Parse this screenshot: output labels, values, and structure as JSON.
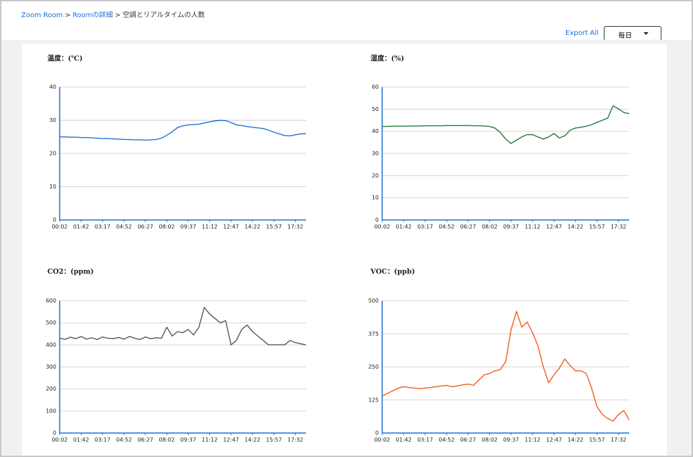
{
  "breadcrumb": {
    "items": [
      "Zoom Room",
      "Roomの詳細",
      "空調とリアルタイムの人数"
    ],
    "separator": ">"
  },
  "toolbar": {
    "export": "Export All",
    "period": "毎日"
  },
  "chart_data": [
    {
      "type": "line",
      "title": "温度：(℃)",
      "color": "#1a6fd6",
      "categories": [
        "00:02",
        null,
        null,
        null,
        "01:42",
        null,
        null,
        null,
        "03:17",
        null,
        null,
        null,
        "04:52",
        null,
        null,
        null,
        "06:27",
        null,
        null,
        null,
        "08:02",
        null,
        null,
        null,
        "09:37",
        null,
        null,
        null,
        "11:12",
        null,
        null,
        null,
        "12:47",
        null,
        null,
        null,
        "14:22",
        null,
        null,
        null,
        "15:57",
        null,
        null,
        null,
        "17:32",
        null,
        null
      ],
      "values": [
        25,
        25,
        24.9,
        24.9,
        24.8,
        24.8,
        24.7,
        24.6,
        24.5,
        24.5,
        24.4,
        24.3,
        24.2,
        24.2,
        24.1,
        24.1,
        24.0,
        24.1,
        24.2,
        24.6,
        25.5,
        26.5,
        27.8,
        28.3,
        28.6,
        28.7,
        28.8,
        29.2,
        29.5,
        29.8,
        30.0,
        29.9,
        29.3,
        28.6,
        28.4,
        28.1,
        27.9,
        27.7,
        27.5,
        27.0,
        26.4,
        25.9,
        25.4,
        25.3,
        25.6,
        25.9,
        26.0
      ],
      "ylim": [
        0,
        40
      ],
      "yticks": [
        0,
        10,
        20,
        30,
        40
      ],
      "grid": true
    },
    {
      "type": "line",
      "title": "湿度：(%)",
      "color": "#1e7a3c",
      "categories": [
        "00:02",
        null,
        null,
        null,
        "01:42",
        null,
        null,
        null,
        "03:17",
        null,
        null,
        null,
        "04:52",
        null,
        null,
        null,
        "06:27",
        null,
        null,
        null,
        "08:02",
        null,
        null,
        null,
        "09:37",
        null,
        null,
        null,
        "11:12",
        null,
        null,
        null,
        "12:47",
        null,
        null,
        null,
        "14:22",
        null,
        null,
        null,
        "15:57",
        null,
        null,
        null,
        "17:32",
        null,
        null
      ],
      "values": [
        42.2,
        42.2,
        42.3,
        42.3,
        42.3,
        42.4,
        42.4,
        42.4,
        42.5,
        42.5,
        42.5,
        42.5,
        42.6,
        42.6,
        42.6,
        42.6,
        42.6,
        42.5,
        42.5,
        42.4,
        42.2,
        41.5,
        39.5,
        36.5,
        34.5,
        36,
        37.5,
        38.5,
        38.5,
        37.5,
        36.5,
        37.5,
        39,
        37,
        38,
        40.5,
        41.5,
        41.8,
        42.3,
        43,
        44,
        45,
        46,
        51.5,
        50.2,
        48.5,
        48
      ],
      "ylim": [
        0,
        60
      ],
      "yticks": [
        0,
        10,
        20,
        30,
        40,
        50,
        60
      ],
      "grid": true
    },
    {
      "type": "line",
      "title": "CO2：(ppm)",
      "color": "#555555",
      "categories": [
        "00:02",
        null,
        null,
        null,
        "01:42",
        null,
        null,
        null,
        "03:17",
        null,
        null,
        null,
        "04:52",
        null,
        null,
        null,
        "06:27",
        null,
        null,
        null,
        "08:02",
        null,
        null,
        null,
        "09:37",
        null,
        null,
        null,
        "11:12",
        null,
        null,
        null,
        "12:47",
        null,
        null,
        null,
        "14:22",
        null,
        null,
        null,
        "15:57",
        null,
        null,
        null,
        "17:32",
        null,
        null
      ],
      "values": [
        430,
        425,
        435,
        428,
        438,
        426,
        432,
        424,
        436,
        430,
        428,
        434,
        426,
        438,
        430,
        424,
        436,
        428,
        432,
        430,
        480,
        440,
        460,
        455,
        470,
        445,
        480,
        570,
        540,
        520,
        500,
        510,
        400,
        420,
        470,
        490,
        460,
        440,
        420,
        400,
        400,
        400,
        400,
        420,
        410,
        405,
        400
      ],
      "ylim": [
        0,
        600
      ],
      "yticks": [
        0,
        100,
        200,
        300,
        400,
        500,
        600
      ],
      "grid": true
    },
    {
      "type": "line",
      "title": "VOC：(ppb)",
      "color": "#f05a1a",
      "categories": [
        "00:02",
        null,
        null,
        null,
        "01:42",
        null,
        null,
        null,
        "03:17",
        null,
        null,
        null,
        "04:52",
        null,
        null,
        null,
        "06:27",
        null,
        null,
        null,
        "08:02",
        null,
        null,
        null,
        "09:37",
        null,
        null,
        null,
        "11:12",
        null,
        null,
        null,
        "12:47",
        null,
        null,
        null,
        "14:22",
        null,
        null,
        null,
        "15:57",
        null,
        null,
        null,
        "17:32",
        null,
        null
      ],
      "values": [
        140,
        150,
        160,
        170,
        175,
        172,
        170,
        168,
        170,
        172,
        175,
        178,
        180,
        175,
        178,
        182,
        185,
        180,
        200,
        220,
        225,
        235,
        240,
        270,
        390,
        460,
        400,
        420,
        380,
        330,
        250,
        190,
        220,
        245,
        280,
        255,
        235,
        235,
        225,
        170,
        100,
        70,
        55,
        45,
        70,
        85,
        50
      ],
      "ylim": [
        0,
        500
      ],
      "yticks": [
        0,
        125,
        250,
        375,
        500
      ],
      "grid": true
    }
  ]
}
